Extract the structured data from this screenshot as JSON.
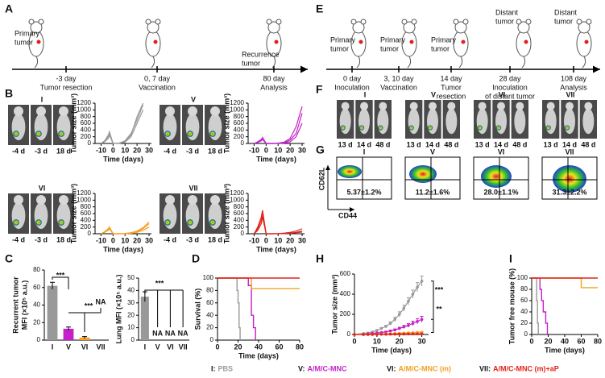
{
  "panel_labels": [
    "A",
    "B",
    "C",
    "D",
    "E",
    "F",
    "G",
    "H",
    "I"
  ],
  "timeline_a": [
    {
      "above": [
        "Primary",
        "tumor"
      ],
      "below": [
        "-3 day",
        "Tumor resection"
      ]
    },
    {
      "above": [],
      "below": [
        "0, 7 day",
        "Vaccination"
      ]
    },
    {
      "above": [
        "Recurrence",
        "tumor"
      ],
      "below": [
        "80 day",
        "Analysis"
      ]
    }
  ],
  "timeline_e": [
    {
      "above": [
        "Primary",
        "tumor"
      ],
      "below": [
        "0 day",
        "Inoculation"
      ]
    },
    {
      "above": [
        "Primary",
        "tumor"
      ],
      "below": [
        "3, 10 day",
        "Vaccination"
      ]
    },
    {
      "above": [
        "Primary",
        "tumor"
      ],
      "below": [
        "14 day",
        "Tumor",
        "resection"
      ]
    },
    {
      "above": [
        "Distant",
        "tumor"
      ],
      "below": [
        "28 day",
        "Inoculation",
        "of  distant tumor"
      ]
    },
    {
      "above": [
        "Distant",
        "tumor"
      ],
      "below": [
        "108 day",
        "Analysis"
      ]
    }
  ],
  "imaging_b": [
    {
      "label": "I",
      "days": [
        "-4 d",
        "-3 d",
        "18 d"
      ]
    },
    {
      "label": "V",
      "days": [
        "-4 d",
        "-3 d",
        "18 d"
      ]
    },
    {
      "label": "VI",
      "days": [
        "-4 d",
        "-3 d",
        "18 d"
      ]
    },
    {
      "label": "VII",
      "days": [
        "-4 d",
        "-3 d",
        "18 d"
      ]
    }
  ],
  "imaging_f": [
    {
      "label": "I",
      "days": [
        "13 d",
        "14 d",
        "48 d"
      ]
    },
    {
      "label": "V",
      "days": [
        "13 d",
        "14 d",
        "48 d"
      ]
    },
    {
      "label": "VI",
      "days": [
        "13 d",
        "14 d",
        "48 d"
      ]
    },
    {
      "label": "VII",
      "days": [
        "13 d",
        "14 d",
        "48 d"
      ]
    }
  ],
  "flow_g": {
    "y_label": "CD62L",
    "x_label": "CD44",
    "plots": [
      {
        "label": "I",
        "percent": "5.37±1.2%"
      },
      {
        "label": "V",
        "percent": "11.2±1.6%"
      },
      {
        "label": "VI",
        "percent": "28.0±1.1%"
      },
      {
        "label": "VII",
        "percent": "31.3±2.2%"
      }
    ]
  },
  "legend": [
    {
      "key": "I:",
      "name": "PBS",
      "color": "#999999"
    },
    {
      "key": "V:",
      "name": "A/M/C-MNC",
      "color": "#c51fc9"
    },
    {
      "key": "VI:",
      "name": "A/M/C-MNC (m)",
      "color": "#f5a020"
    },
    {
      "key": "VII:",
      "name": "A/M/C-MNC (m)+aP",
      "color": "#e2231a"
    }
  ],
  "chart_data": [
    {
      "type": "line",
      "x_label": "Time (days)",
      "y_label": "Tumor size (mm³)",
      "xlim": [
        -15,
        32
      ],
      "xticks": [
        -10,
        0,
        10,
        20,
        30
      ],
      "ylim": [
        0,
        1200
      ],
      "yticks": [
        0,
        200,
        400,
        600,
        800,
        1000,
        1200
      ],
      "x": [
        -10,
        -7,
        -4,
        -3,
        0,
        5,
        10,
        15,
        20,
        25,
        30
      ],
      "series": [
        {
          "color": "#999999",
          "values": [
            0,
            80,
            250,
            350,
            0,
            10,
            80,
            300,
            700,
            1150,
            null
          ]
        },
        {
          "color": "#999999",
          "values": [
            0,
            60,
            200,
            300,
            0,
            5,
            60,
            250,
            800,
            1200,
            null
          ]
        },
        {
          "color": "#999999",
          "values": [
            0,
            50,
            150,
            250,
            0,
            0,
            40,
            200,
            600,
            1000,
            null
          ]
        }
      ]
    },
    {
      "type": "line",
      "x_label": "Time (days)",
      "y_label": "Tumor size (mm³)",
      "xlim": [
        -15,
        32
      ],
      "xticks": [
        -10,
        0,
        10,
        20,
        30
      ],
      "ylim": [
        0,
        1200
      ],
      "yticks": [
        0,
        200,
        400,
        600,
        800,
        1000,
        1200
      ],
      "x": [
        -10,
        -7,
        -4,
        -3,
        0,
        5,
        10,
        15,
        20,
        25,
        30
      ],
      "series": [
        {
          "color": "#c51fc9",
          "values": [
            0,
            40,
            100,
            150,
            0,
            0,
            5,
            20,
            100,
            300,
            900
          ]
        },
        {
          "color": "#c51fc9",
          "values": [
            0,
            30,
            80,
            120,
            0,
            0,
            0,
            10,
            50,
            200,
            600
          ]
        },
        {
          "color": "#c51fc9",
          "values": [
            0,
            50,
            120,
            180,
            0,
            0,
            10,
            40,
            150,
            500,
            1100
          ]
        }
      ]
    },
    {
      "type": "line",
      "x_label": "Time (days)",
      "y_label": "Tumor size (mm³)",
      "xlim": [
        -15,
        32
      ],
      "xticks": [
        -10,
        0,
        10,
        20,
        30
      ],
      "ylim": [
        0,
        1200
      ],
      "yticks": [
        0,
        200,
        400,
        600,
        800,
        1000,
        1200
      ],
      "x": [
        -10,
        -7,
        -4,
        -3,
        0,
        5,
        10,
        15,
        20,
        25,
        30
      ],
      "series": [
        {
          "color": "#f5a020",
          "values": [
            0,
            60,
            150,
            200,
            0,
            0,
            5,
            20,
            60,
            150,
            300
          ]
        },
        {
          "color": "#f5a020",
          "values": [
            0,
            40,
            100,
            150,
            0,
            0,
            0,
            10,
            40,
            100,
            200
          ]
        },
        {
          "color": "#f5a020",
          "values": [
            0,
            50,
            120,
            180,
            0,
            0,
            10,
            30,
            80,
            180,
            350
          ]
        }
      ]
    },
    {
      "type": "line",
      "x_label": "Time (days)",
      "y_label": "Tumor size (mm³)",
      "xlim": [
        -15,
        32
      ],
      "xticks": [
        -10,
        0,
        10,
        20,
        30
      ],
      "ylim": [
        0,
        1200
      ],
      "yticks": [
        0,
        200,
        400,
        600,
        800,
        1000,
        1200
      ],
      "x": [
        -10,
        -7,
        -4,
        -3,
        0,
        5,
        10,
        15,
        20,
        25,
        30
      ],
      "series": [
        {
          "color": "#e2231a",
          "values": [
            0,
            200,
            500,
            700,
            0,
            0,
            5,
            20,
            40,
            80,
            150
          ]
        },
        {
          "color": "#e2231a",
          "values": [
            0,
            150,
            400,
            600,
            0,
            0,
            0,
            10,
            20,
            40,
            80
          ]
        },
        {
          "color": "#e2231a",
          "values": [
            0,
            100,
            300,
            500,
            0,
            0,
            0,
            5,
            15,
            30,
            50
          ]
        }
      ]
    },
    {
      "type": "bar",
      "y_label": [
        "Recurrent tumor",
        "MFI (×10⁵ a.u.)"
      ],
      "categories": [
        "I",
        "V",
        "VI",
        "VII"
      ],
      "values": [
        62,
        13,
        3,
        null
      ],
      "errors": [
        4,
        2,
        1,
        null
      ],
      "value_labels": [
        null,
        null,
        null,
        "NA"
      ],
      "colors": [
        "#999999",
        "#c51fc9",
        "#f5a020",
        "#e2231a"
      ],
      "ylim": [
        0,
        80
      ],
      "yticks": [
        0,
        20,
        40,
        60,
        80
      ],
      "annotations": [
        "***",
        "***"
      ]
    },
    {
      "type": "bar",
      "y_label": [
        "Lung MFI (×10⁵ a.u.)"
      ],
      "categories": [
        "I",
        "V",
        "VI",
        "VII"
      ],
      "values": [
        35,
        null,
        null,
        null
      ],
      "errors": [
        4,
        null,
        null,
        null
      ],
      "value_labels": [
        null,
        "NA",
        "NA",
        "NA"
      ],
      "colors": [
        "#999999",
        "#c51fc9",
        "#f5a020",
        "#e2231a"
      ],
      "ylim": [
        0,
        50
      ],
      "yticks": [
        0,
        10,
        20,
        30,
        40,
        50
      ],
      "annotations": [
        "***"
      ]
    },
    {
      "type": "step",
      "x_label": "Time (days)",
      "y_label": "Survival (%)",
      "xlim": [
        0,
        80
      ],
      "xticks": [
        0,
        20,
        40,
        60,
        80
      ],
      "ylim": [
        0,
        100
      ],
      "yticks": [
        0,
        20,
        40,
        60,
        80,
        100
      ],
      "series": [
        {
          "color": "#999999",
          "x": [
            0,
            19,
            20,
            21,
            22
          ],
          "values": [
            100,
            80,
            60,
            20,
            0
          ]
        },
        {
          "color": "#c51fc9",
          "x": [
            0,
            30,
            33,
            35,
            37
          ],
          "values": [
            100,
            88,
            40,
            20,
            0
          ]
        },
        {
          "color": "#f5a020",
          "x": [
            0,
            33,
            80
          ],
          "values": [
            100,
            83,
            83
          ]
        },
        {
          "color": "#e2231a",
          "x": [
            0,
            80
          ],
          "values": [
            100,
            100
          ]
        }
      ]
    },
    {
      "type": "line",
      "x_label": "Time (days)",
      "y_label": "Tumor size (mm³)",
      "xlim": [
        0,
        33
      ],
      "xticks": [
        0,
        10,
        20,
        30
      ],
      "ylim": [
        0,
        600
      ],
      "yticks": [
        0,
        200,
        400,
        600
      ],
      "annotations": [
        "***",
        "**"
      ],
      "x": [
        0,
        4,
        6,
        8,
        10,
        12,
        14,
        16,
        18,
        20,
        22,
        24,
        26,
        28,
        30
      ],
      "series": [
        {
          "color": "#999999",
          "values": [
            0,
            10,
            15,
            25,
            40,
            60,
            80,
            110,
            150,
            200,
            260,
            330,
            400,
            470,
            530
          ],
          "errors": [
            0,
            2,
            3,
            5,
            6,
            8,
            10,
            15,
            20,
            25,
            30,
            35,
            40,
            45,
            50
          ]
        },
        {
          "color": "#c51fc9",
          "values": [
            0,
            0,
            5,
            10,
            15,
            20,
            25,
            35,
            45,
            60,
            75,
            90,
            110,
            130,
            150
          ],
          "errors": [
            0,
            0,
            2,
            3,
            4,
            5,
            6,
            8,
            10,
            12,
            15,
            18,
            22,
            26,
            30
          ]
        },
        {
          "color": "#f5a020",
          "values": [
            0,
            0,
            0,
            2,
            3,
            5,
            6,
            8,
            10,
            12,
            14,
            16,
            18,
            20,
            22
          ],
          "errors": [
            0,
            0,
            0,
            1,
            1,
            2,
            2,
            3,
            3,
            4,
            4,
            5,
            5,
            6,
            6
          ]
        },
        {
          "color": "#e2231a",
          "values": [
            0,
            0,
            0,
            0,
            1,
            2,
            2,
            3,
            3,
            4,
            4,
            5,
            5,
            6,
            6
          ],
          "errors": [
            0,
            0,
            0,
            0,
            1,
            1,
            1,
            1,
            1,
            2,
            2,
            2,
            2,
            2,
            2
          ]
        }
      ]
    },
    {
      "type": "step",
      "x_label": "Time (days)",
      "y_label": "Tumor free mouse (%)",
      "xlim": [
        0,
        80
      ],
      "xticks": [
        0,
        20,
        40,
        60,
        80
      ],
      "ylim": [
        0,
        100
      ],
      "yticks": [
        0,
        20,
        40,
        60,
        80,
        100
      ],
      "series": [
        {
          "color": "#999999",
          "x": [
            0,
            6,
            7,
            8
          ],
          "values": [
            100,
            60,
            20,
            0
          ]
        },
        {
          "color": "#c51fc9",
          "x": [
            0,
            10,
            12,
            14,
            17,
            19
          ],
          "values": [
            100,
            80,
            60,
            40,
            20,
            0
          ]
        },
        {
          "color": "#f5a020",
          "x": [
            0,
            60,
            80
          ],
          "values": [
            100,
            83,
            83
          ]
        },
        {
          "color": "#e2231a",
          "x": [
            0,
            80
          ],
          "values": [
            100,
            100
          ]
        }
      ]
    }
  ]
}
